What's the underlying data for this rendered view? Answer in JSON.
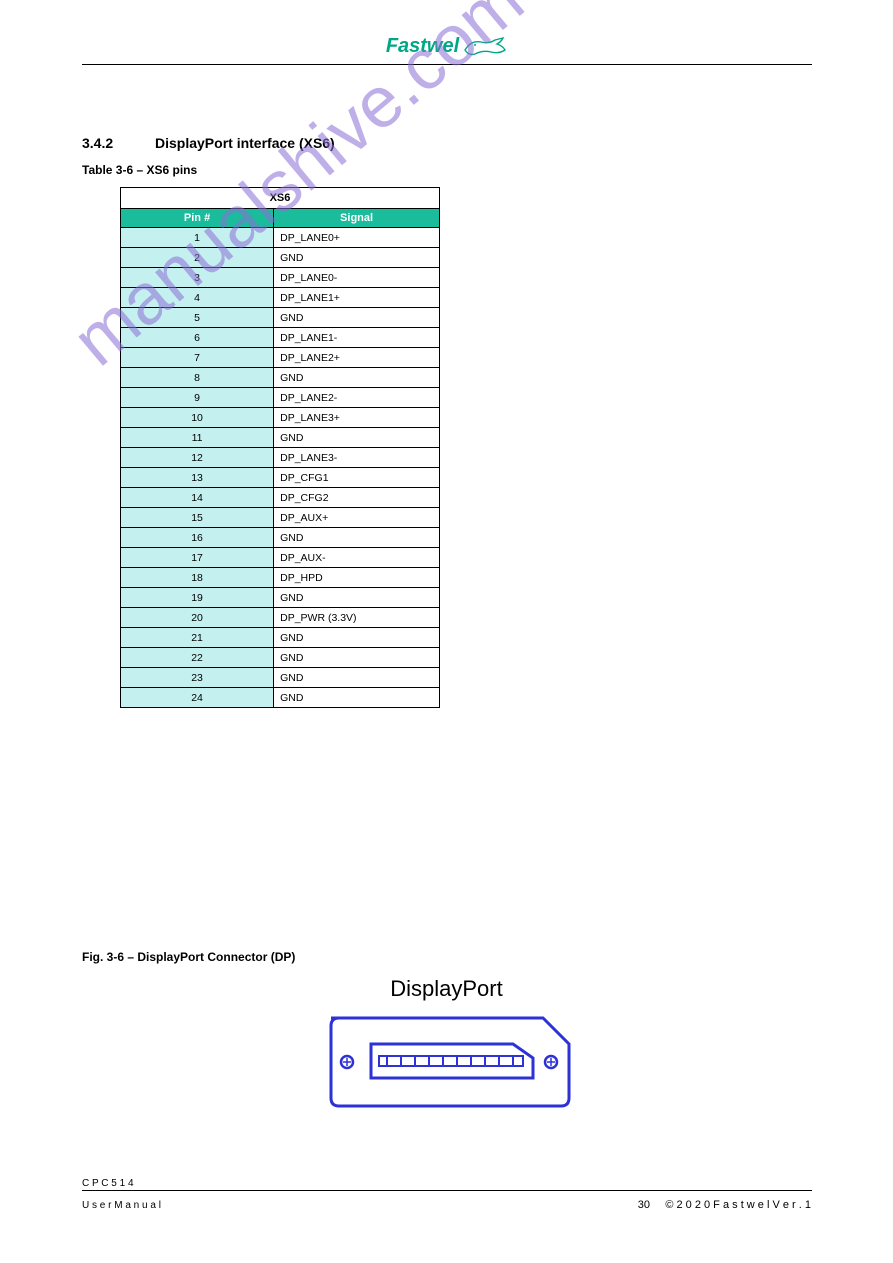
{
  "header": {
    "logo_text": "Fastwel"
  },
  "section": {
    "number": "3.4.2",
    "title": "DisplayPort interface (XS6)"
  },
  "table": {
    "caption": "Table 3-6 – XS6 pins",
    "title": "XS6",
    "columns": [
      "Pin #",
      "Signal"
    ],
    "rows": [
      [
        "1",
        "DP_LANE0+"
      ],
      [
        "2",
        "GND"
      ],
      [
        "3",
        "DP_LANE0-"
      ],
      [
        "4",
        "DP_LANE1+"
      ],
      [
        "5",
        "GND"
      ],
      [
        "6",
        "DP_LANE1-"
      ],
      [
        "7",
        "DP_LANE2+"
      ],
      [
        "8",
        "GND"
      ],
      [
        "9",
        "DP_LANE2-"
      ],
      [
        "10",
        "DP_LANE3+"
      ],
      [
        "11",
        "GND"
      ],
      [
        "12",
        "DP_LANE3-"
      ],
      [
        "13",
        "DP_CFG1"
      ],
      [
        "14",
        "DP_CFG2"
      ],
      [
        "15",
        "DP_AUX+"
      ],
      [
        "16",
        "GND"
      ],
      [
        "17",
        "DP_AUX-"
      ],
      [
        "18",
        "DP_HPD"
      ],
      [
        "19",
        "GND"
      ],
      [
        "20",
        "DP_PWR (3.3V)"
      ],
      [
        "21",
        "GND"
      ],
      [
        "22",
        "GND"
      ],
      [
        "23",
        "GND"
      ],
      [
        "24",
        "GND"
      ]
    ],
    "header_bg": "#1abc9c",
    "header_fg": "#ffffff",
    "pin_bg": "#c5f0f0",
    "sig_bg": "#ffffff",
    "border_color": "#000000"
  },
  "figure": {
    "caption": "Fig. 3-6 – DisplayPort Connector (DP)",
    "label": "DisplayPort",
    "stroke": "#2e32d6",
    "fill": "#ffffff"
  },
  "footer": {
    "doc": "C P C 5 1 4",
    "sub": "U s e r   M a n u a l",
    "page": "30",
    "copyright": "©   2 0 2 0   F a s t w e l   V e r . 1"
  },
  "watermark": "manualshive.com"
}
